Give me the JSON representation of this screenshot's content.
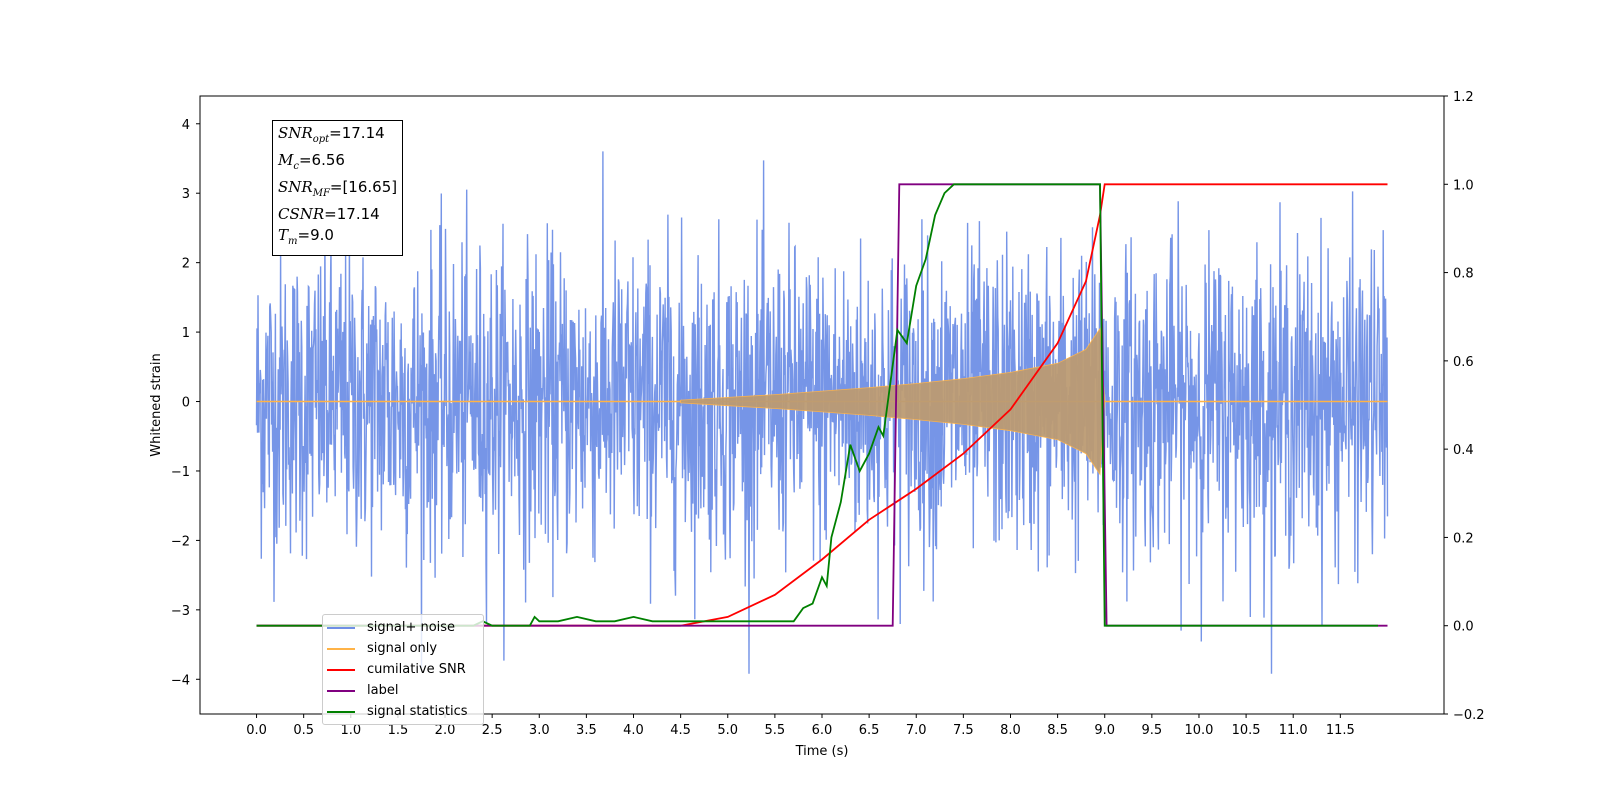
{
  "colors": {
    "noise": "#6f8fe6",
    "signal": "#ffb347",
    "signal_fill": "#bc9b73",
    "csnr": "#ff0000",
    "label": "#800080",
    "stat": "#008000"
  },
  "info": {
    "snr_opt": "=17.14",
    "mc": "=6.56",
    "snr_mf": "=[16.65]",
    "csnr": "=17.14",
    "tm": "=9.0"
  },
  "legend": {
    "items": [
      {
        "label": "signal+ noise",
        "color": "#6f8fe6"
      },
      {
        "label": "signal only",
        "color": "#ffb347"
      },
      {
        "label": "cumilative SNR",
        "color": "#ff0000"
      },
      {
        "label": "label",
        "color": "#800080"
      },
      {
        "label": "signal statistics",
        "color": "#008000"
      }
    ]
  },
  "chart_data": {
    "type": "line",
    "xlabel": "Time (s)",
    "ylabel": "Whitened strain",
    "xlim": [
      -0.6,
      12.6
    ],
    "ylim_left": [
      -4.5,
      4.4
    ],
    "ylim_right": [
      -0.2,
      1.2
    ],
    "x_ticks": [
      "0.0",
      "0.5",
      "1.0",
      "1.5",
      "2.0",
      "2.5",
      "3.0",
      "3.5",
      "4.0",
      "4.5",
      "5.0",
      "5.5",
      "6.0",
      "6.5",
      "7.0",
      "7.5",
      "8.0",
      "8.5",
      "9.0",
      "9.5",
      "10.0",
      "10.5",
      "11.0",
      "11.5"
    ],
    "y_ticks_left": [
      "4",
      "3",
      "2",
      "1",
      "0",
      "−1",
      "−2",
      "−3",
      "−4"
    ],
    "y_ticks_right": [
      "1.2",
      "1.0",
      "0.8",
      "0.6",
      "0.4",
      "0.2",
      "0.0",
      "−0.2"
    ],
    "noise": {
      "t_start": 0.0,
      "t_end": 12.0,
      "typical_amplitude": 2.0,
      "max_amplitude": 4.0
    },
    "signal_envelope": {
      "t": [
        4.5,
        5.0,
        5.5,
        6.0,
        6.5,
        7.0,
        7.5,
        8.0,
        8.5,
        8.8,
        8.95,
        9.0
      ],
      "amp": [
        0.02,
        0.06,
        0.1,
        0.15,
        0.2,
        0.26,
        0.33,
        0.42,
        0.55,
        0.75,
        1.05,
        0.0
      ]
    },
    "series": [
      {
        "name": "cumilative SNR",
        "t": [
          0.0,
          4.5,
          5.0,
          5.5,
          6.0,
          6.5,
          7.0,
          7.5,
          8.0,
          8.5,
          8.8,
          8.95,
          9.0,
          12.0
        ],
        "values": [
          0.0,
          0.0,
          0.02,
          0.07,
          0.15,
          0.24,
          0.31,
          0.39,
          0.49,
          0.64,
          0.78,
          0.93,
          1.0,
          1.0
        ]
      },
      {
        "name": "label",
        "t": [
          0.0,
          6.75,
          6.82,
          8.95,
          9.02,
          12.0
        ],
        "values": [
          0.0,
          0.0,
          1.0,
          1.0,
          0.0,
          0.0
        ]
      },
      {
        "name": "signal statistics",
        "t": [
          0.0,
          2.3,
          2.4,
          2.5,
          2.6,
          2.7,
          2.8,
          2.9,
          2.95,
          3.0,
          3.2,
          3.4,
          3.6,
          3.8,
          4.0,
          4.2,
          4.5,
          5.0,
          5.5,
          5.7,
          5.8,
          5.9,
          6.0,
          6.05,
          6.1,
          6.2,
          6.3,
          6.4,
          6.5,
          6.6,
          6.65,
          6.7,
          6.8,
          6.9,
          7.0,
          7.1,
          7.2,
          7.3,
          7.4,
          7.5,
          7.6,
          7.7,
          8.9,
          8.95,
          9.0,
          9.1,
          11.9
        ],
        "values": [
          0.0,
          0.0,
          0.01,
          0.0,
          0.0,
          0.0,
          0.0,
          0.0,
          0.02,
          0.01,
          0.01,
          0.02,
          0.01,
          0.01,
          0.02,
          0.01,
          0.01,
          0.01,
          0.01,
          0.01,
          0.04,
          0.05,
          0.11,
          0.09,
          0.2,
          0.28,
          0.41,
          0.35,
          0.39,
          0.45,
          0.43,
          0.51,
          0.67,
          0.64,
          0.77,
          0.83,
          0.93,
          0.98,
          1.0,
          1.0,
          1.0,
          1.0,
          1.0,
          1.0,
          0.0,
          0.0,
          0.0
        ]
      }
    ],
    "legend_position": "lower-left"
  }
}
